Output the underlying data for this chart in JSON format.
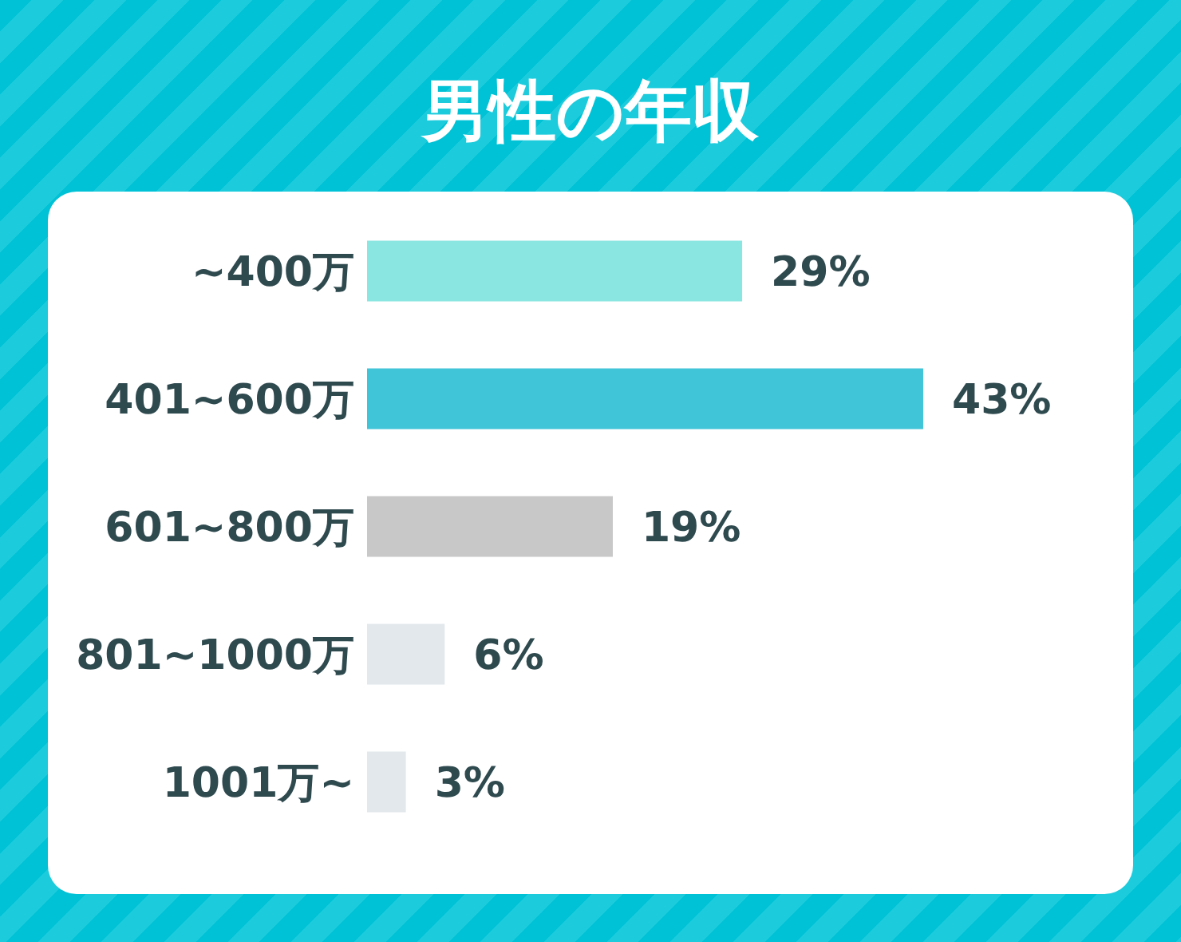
{
  "chart_data": {
    "type": "bar",
    "orientation": "horizontal",
    "title": "男性の年収",
    "categories": [
      "~400万",
      "401~600万",
      "601~800万",
      "801~1000万",
      "1001万~"
    ],
    "values": [
      29,
      43,
      19,
      6,
      3
    ],
    "colors": [
      "#8ae6e0",
      "#40c4d8",
      "#c8c8c8",
      "#e2e8ec",
      "#e2e8ec"
    ],
    "value_labels": [
      "29%",
      "43%",
      "19%",
      "6%",
      "3%"
    ]
  }
}
